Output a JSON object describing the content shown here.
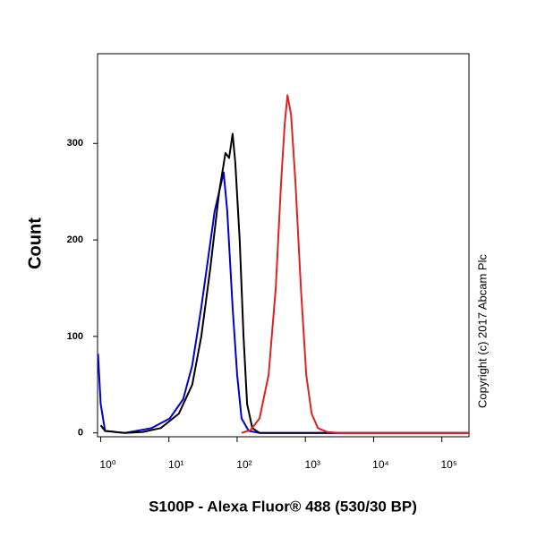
{
  "chart_data": {
    "type": "line",
    "x_label": "S100P - Alexa Fluor® 488 (530/30 BP)",
    "y_label": "Count",
    "annotation": "Copyright (c) 2017 Abcam Plc",
    "xscale": "log",
    "xlim": [
      0.9,
      250000
    ],
    "ylim": [
      -4,
      393
    ],
    "xticks": [
      {
        "value": 1,
        "label": "10⁰"
      },
      {
        "value": 10,
        "label": "10¹"
      },
      {
        "value": 100,
        "label": "10²"
      },
      {
        "value": 1000,
        "label": "10³"
      },
      {
        "value": 10000,
        "label": "10⁴"
      },
      {
        "value": 100000,
        "label": "10⁵"
      }
    ],
    "yticks": [
      0,
      100,
      200,
      300
    ],
    "series": [
      {
        "color": "#0000cc",
        "x": [
          0.914,
          1,
          1.16,
          2.27,
          5.6,
          10.3,
          16.2,
          22,
          29.8,
          46.9,
          54.6,
          63.5,
          71.6,
          85.9,
          100,
          116,
          148,
          213,
          250000
        ],
        "values": [
          82,
          30,
          2,
          0,
          5,
          15,
          35,
          70,
          130,
          230,
          250,
          270,
          230,
          130,
          60,
          15,
          2,
          0,
          0
        ]
      },
      {
        "color": "#000000",
        "x": [
          1,
          1.16,
          2.27,
          4.15,
          7.6,
          14,
          22,
          29.8,
          40.3,
          54.6,
          67.4,
          76.2,
          85.9,
          94.1,
          109,
          124,
          140,
          167,
          213,
          250000
        ],
        "values": [
          8,
          2,
          0,
          1,
          5,
          20,
          50,
          100,
          170,
          250,
          290,
          285,
          310,
          280,
          200,
          100,
          30,
          5,
          0,
          0
        ]
      },
      {
        "color": "#dd2222",
        "x": [
          116,
          157,
          213,
          289,
          368,
          441,
          498,
          546,
          616,
          716,
          859,
          1031,
          1236,
          1528,
          2070,
          3258,
          250000
        ],
        "values": [
          0,
          3,
          15,
          60,
          150,
          260,
          320,
          350,
          330,
          260,
          150,
          60,
          20,
          5,
          1,
          0,
          0
        ]
      }
    ]
  }
}
